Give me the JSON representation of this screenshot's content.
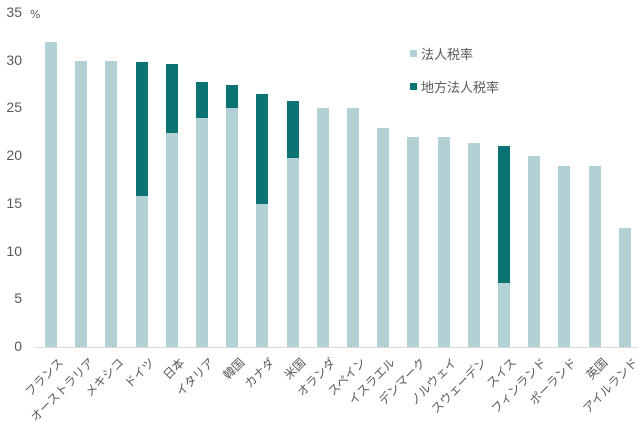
{
  "chart_data": {
    "type": "bar",
    "stacked": true,
    "title": "",
    "xlabel": "",
    "ylabel": "%",
    "ylim": [
      0,
      35
    ],
    "yticks": [
      0,
      5,
      10,
      15,
      20,
      25,
      30,
      35
    ],
    "grid": false,
    "legend_position": "upper right (inside)",
    "categories": [
      "フランス",
      "オーストラリア",
      "メキシコ",
      "ドイツ",
      "日本",
      "イタリア",
      "韓国",
      "カナダ",
      "米国",
      "オランダ",
      "スペイン",
      "イスラエル",
      "デンマーク",
      "ノルウェイ",
      "スウェーデン",
      "スイス",
      "フィンランド",
      "ポーランド",
      "英国",
      "アイルランド"
    ],
    "series": [
      {
        "name": "法人税率",
        "color": "#b1d1d4",
        "values": [
          32.0,
          30.0,
          30.0,
          15.8,
          22.4,
          24.0,
          25.0,
          15.0,
          19.8,
          25.0,
          25.0,
          23.0,
          22.0,
          22.0,
          21.4,
          6.7,
          20.0,
          19.0,
          19.0,
          12.5
        ]
      },
      {
        "name": "地方法人税率",
        "color": "#0b7373",
        "values": [
          0,
          0,
          0,
          14.1,
          7.3,
          3.8,
          2.5,
          11.5,
          6.0,
          0,
          0,
          0,
          0,
          0,
          0,
          14.4,
          0,
          0,
          0,
          0
        ]
      }
    ]
  },
  "axis": {
    "unit": "%",
    "yticks": [
      "35",
      "30",
      "25",
      "20",
      "15",
      "10",
      "5",
      "0"
    ]
  },
  "legend": [
    {
      "label": "法人税率",
      "color": "#b1d1d4"
    },
    {
      "label": "地方法人税率",
      "color": "#0b7373"
    }
  ]
}
